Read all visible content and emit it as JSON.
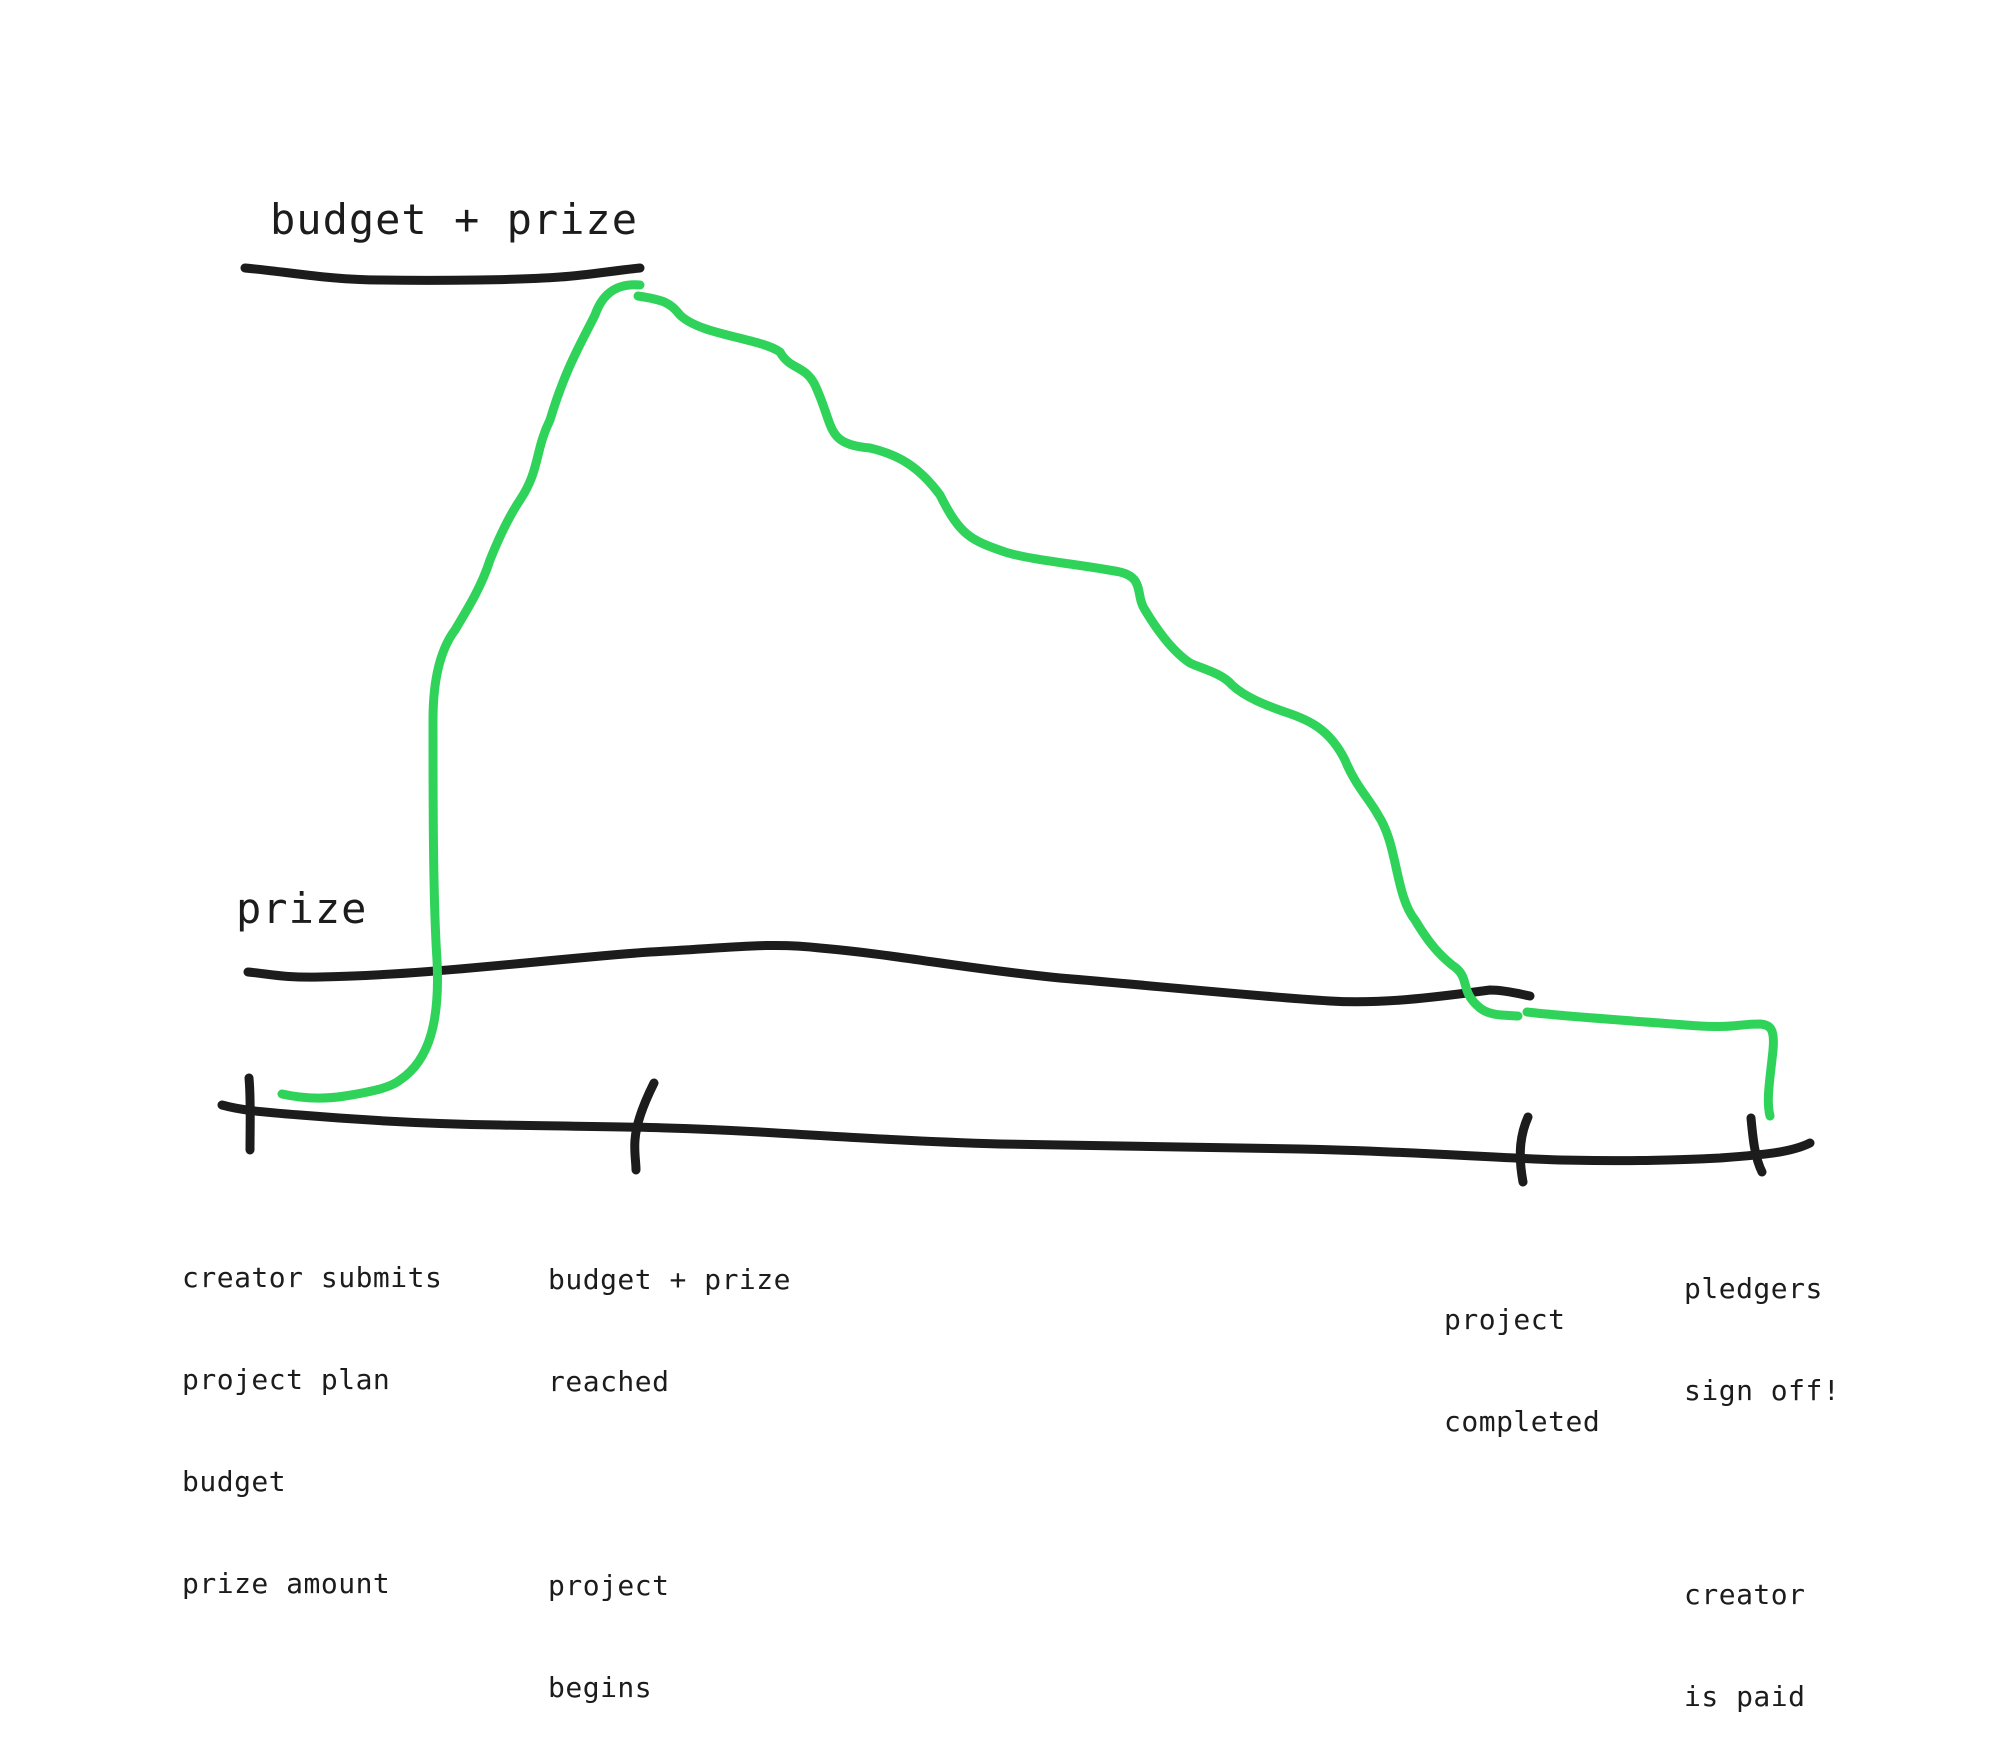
{
  "levels": {
    "top_label": "budget + prize",
    "mid_label": "prize"
  },
  "milestones": [
    {
      "lines": [
        "creator submits",
        "project plan",
        "budget",
        "prize amount"
      ]
    },
    {
      "lines": [
        "budget + prize",
        "reached",
        "",
        "project",
        "begins"
      ]
    },
    {
      "lines": [
        "project",
        "completed"
      ]
    },
    {
      "lines": [
        "pledgers",
        "sign off!",
        "",
        "creator",
        "is paid"
      ]
    }
  ],
  "colors": {
    "ink": "#1c1c1c",
    "funds_curve": "#2fd35a"
  }
}
